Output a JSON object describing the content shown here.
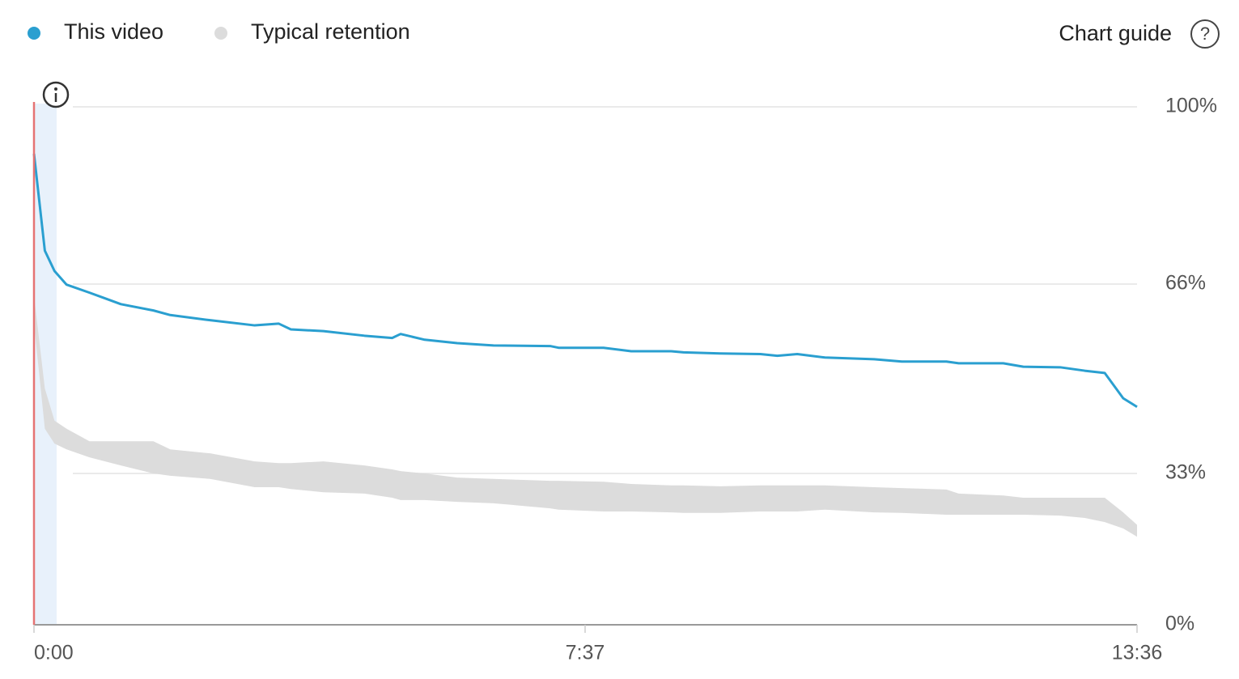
{
  "chart_data": {
    "type": "line",
    "series": [
      {
        "name": "This video",
        "color": "#2a9fd0",
        "values": [
          91.0,
          72.4,
          68.5,
          65.9,
          64.5,
          62.5,
          61.4,
          60.6,
          59.7,
          58.8,
          59.1,
          58.1,
          57.8,
          57.0,
          56.6,
          57.3,
          56.3,
          55.7,
          55.3,
          55.2,
          54.9,
          54.9,
          54.3,
          54.3,
          54.1,
          53.9,
          53.8,
          53.5,
          53.8,
          53.2,
          52.9,
          52.5,
          52.5,
          52.2,
          52.2,
          51.6,
          51.5,
          50.9,
          50.5,
          46.1,
          44.6
        ]
      },
      {
        "name": "Typical retention",
        "color": "#dcdcdc",
        "high": [
          64.0,
          47.8,
          42.2,
          40.8,
          38.6,
          38.6,
          38.6,
          37.2,
          36.5,
          35.1,
          34.8,
          34.8,
          35.1,
          34.4,
          33.7,
          33.4,
          33.0,
          32.1,
          31.8,
          31.4,
          31.4,
          31.2,
          30.7,
          30.4,
          30.4,
          30.2,
          30.4,
          30.4,
          30.4,
          30.4,
          30.0,
          29.8,
          29.5,
          28.6,
          28.2,
          27.7,
          27.7,
          27.7,
          27.7,
          24.5,
          21.8
        ],
        "low": [
          59.1,
          40.8,
          38.2,
          37.2,
          35.8,
          34.4,
          33.0,
          32.5,
          31.8,
          30.0,
          30.0,
          29.6,
          28.9,
          28.6,
          27.7,
          27.2,
          27.2,
          26.8,
          26.5,
          25.4,
          25.1,
          24.7,
          24.7,
          24.5,
          24.4,
          24.4,
          24.7,
          24.7,
          24.7,
          25.1,
          24.5,
          24.4,
          24.0,
          24.0,
          24.0,
          24.0,
          23.8,
          23.3,
          22.4,
          21.0,
          19.2
        ]
      }
    ],
    "x": [
      0,
      9,
      17,
      27,
      46,
      72,
      99,
      113,
      146,
      183,
      203,
      213,
      240,
      274,
      297,
      304,
      324,
      351,
      381,
      428,
      435,
      469,
      487,
      513,
      521,
      545,
      571,
      582,
      595,
      613,
      645,
      663,
      692,
      700,
      729,
      742,
      766,
      782,
      795,
      807,
      816
    ],
    "xlim": [
      0,
      816
    ],
    "xticks": [
      {
        "value": 0,
        "label": "0:00"
      },
      {
        "value": 457,
        "label": "7:37"
      },
      {
        "value": 816,
        "label": "13:36"
      }
    ],
    "ylim": [
      0,
      100
    ],
    "yticks": [
      {
        "value": 0,
        "label": "0%"
      },
      {
        "value": 33,
        "label": "33%"
      },
      {
        "value": 66,
        "label": "66%"
      },
      {
        "value": 100,
        "label": "100%"
      }
    ],
    "grid": true,
    "chart_guide": "Chart guide"
  }
}
